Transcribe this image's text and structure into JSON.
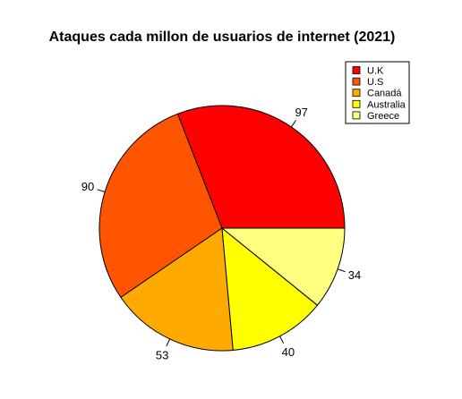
{
  "chart_data": {
    "type": "pie",
    "title": "Ataques cada millon de usuarios de internet (2021)",
    "categories": [
      "U.K",
      "U.S",
      "Canadá",
      "Australia",
      "Greece"
    ],
    "values": [
      97,
      90,
      53,
      40,
      34
    ],
    "colors": [
      "#FF0000",
      "#FF5500",
      "#FFAA00",
      "#FFFF00",
      "#FFFF80"
    ],
    "legend_position": "top-right",
    "start": "counter-clockwise from 3 o'clock"
  }
}
